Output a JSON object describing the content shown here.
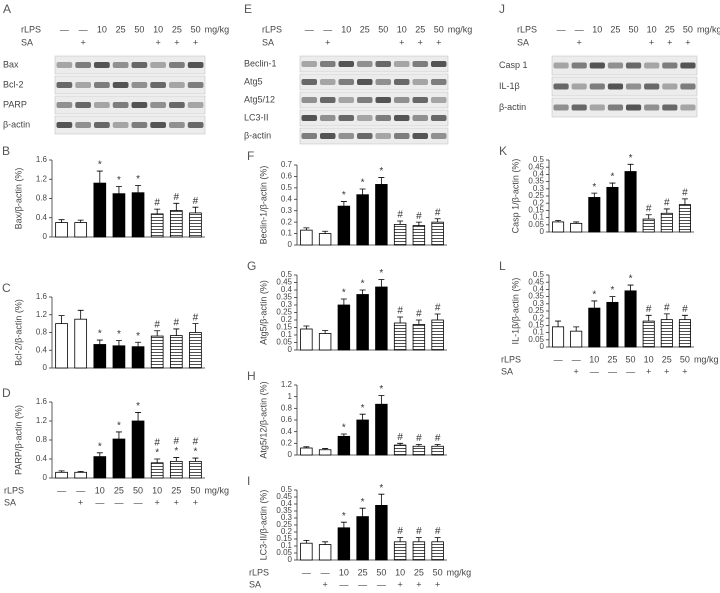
{
  "chart_data": [
    {
      "type": "bar",
      "panel": "B",
      "ylabel": "Bax/β-actin (%)",
      "ylim": [
        0,
        1.6
      ],
      "yticks": [
        0,
        0.4,
        0.8,
        1.2,
        1.6
      ],
      "values": [
        0.3,
        0.3,
        1.12,
        0.9,
        0.92,
        0.48,
        0.55,
        0.5
      ],
      "errors": [
        0.06,
        0.05,
        0.25,
        0.15,
        0.15,
        0.1,
        0.15,
        0.12
      ],
      "styles": [
        "open",
        "open",
        "solid",
        "solid",
        "solid",
        "hatched",
        "hatched",
        "hatched"
      ],
      "annotations": [
        [],
        [],
        [
          "*"
        ],
        [
          "*"
        ],
        [
          "*"
        ],
        [
          "#"
        ],
        [
          "#"
        ],
        [
          "#"
        ]
      ]
    },
    {
      "type": "bar",
      "panel": "C",
      "ylabel": "Bcl-2/β-actin (%)",
      "ylim": [
        0,
        1.6
      ],
      "yticks": [
        0,
        0.4,
        0.8,
        1.2,
        1.6
      ],
      "values": [
        1.0,
        1.1,
        0.53,
        0.5,
        0.48,
        0.72,
        0.73,
        0.8
      ],
      "errors": [
        0.18,
        0.2,
        0.1,
        0.12,
        0.1,
        0.12,
        0.15,
        0.2
      ],
      "styles": [
        "open",
        "open",
        "solid",
        "solid",
        "solid",
        "hatched",
        "hatched",
        "hatched"
      ],
      "annotations": [
        [],
        [],
        [
          "*"
        ],
        [
          "*"
        ],
        [
          "*"
        ],
        [
          "#"
        ],
        [
          "#"
        ],
        [
          "#"
        ]
      ]
    },
    {
      "type": "bar",
      "panel": "D",
      "ylabel": "PARP/β-actin (%)",
      "ylim": [
        0,
        1.6
      ],
      "yticks": [
        0,
        0.4,
        0.8,
        1.2,
        1.6
      ],
      "values": [
        0.12,
        0.12,
        0.45,
        0.82,
        1.2,
        0.32,
        0.35,
        0.35
      ],
      "errors": [
        0.03,
        0.02,
        0.08,
        0.15,
        0.18,
        0.08,
        0.08,
        0.07
      ],
      "styles": [
        "open",
        "open",
        "solid",
        "solid",
        "solid",
        "hatched",
        "hatched",
        "hatched"
      ],
      "annotations": [
        [],
        [],
        [
          "*"
        ],
        [
          "*"
        ],
        [
          "*"
        ],
        [
          "*",
          "#"
        ],
        [
          "*",
          "#"
        ],
        [
          "*",
          "#"
        ]
      ],
      "treatments": {
        "rLPS_label": "rLPS",
        "rLPS": [
          "—",
          "—",
          "10",
          "25",
          "50",
          "10",
          "25",
          "50"
        ],
        "unit": "mg/kg",
        "SA_label": "SA",
        "SA": [
          null,
          "+",
          "—",
          "—",
          "—",
          "+",
          "+",
          "+"
        ]
      }
    },
    {
      "type": "bar",
      "panel": "F",
      "ylabel": "Beclin-1/β-actin (%)",
      "ylim": [
        0,
        0.7
      ],
      "yticks": [
        0,
        0.1,
        0.2,
        0.3,
        0.4,
        0.5,
        0.6,
        0.7
      ],
      "values": [
        0.13,
        0.1,
        0.34,
        0.44,
        0.53,
        0.18,
        0.17,
        0.2
      ],
      "errors": [
        0.02,
        0.02,
        0.04,
        0.05,
        0.06,
        0.03,
        0.03,
        0.03
      ],
      "styles": [
        "open",
        "open",
        "solid",
        "solid",
        "solid",
        "hatched",
        "hatched",
        "hatched"
      ],
      "annotations": [
        [],
        [],
        [
          "*"
        ],
        [
          "*"
        ],
        [
          "*"
        ],
        [
          "#"
        ],
        [
          "#"
        ],
        [
          "#"
        ]
      ]
    },
    {
      "type": "bar",
      "panel": "G",
      "ylabel": "Atg5/β-actin (%)",
      "ylim": [
        0,
        0.5
      ],
      "yticks": [
        0,
        0.05,
        0.1,
        0.15,
        0.2,
        0.25,
        0.3,
        0.35,
        0.4,
        0.45,
        0.5
      ],
      "values": [
        0.14,
        0.11,
        0.3,
        0.37,
        0.42,
        0.18,
        0.17,
        0.2
      ],
      "errors": [
        0.02,
        0.02,
        0.04,
        0.03,
        0.05,
        0.04,
        0.03,
        0.04
      ],
      "styles": [
        "open",
        "open",
        "solid",
        "solid",
        "solid",
        "hatched",
        "hatched",
        "hatched"
      ],
      "annotations": [
        [],
        [],
        [
          "*"
        ],
        [
          "*"
        ],
        [
          "*"
        ],
        [
          "#"
        ],
        [
          "#"
        ],
        [
          "#"
        ]
      ]
    },
    {
      "type": "bar",
      "panel": "H",
      "ylabel": "Atg5/12/β-actin (%)",
      "ylim": [
        0,
        1.2
      ],
      "yticks": [
        0,
        0.2,
        0.4,
        0.6,
        0.8,
        1,
        1.2
      ],
      "values": [
        0.12,
        0.09,
        0.32,
        0.6,
        0.87,
        0.17,
        0.15,
        0.15
      ],
      "errors": [
        0.02,
        0.02,
        0.04,
        0.1,
        0.15,
        0.03,
        0.03,
        0.03
      ],
      "styles": [
        "open",
        "open",
        "solid",
        "solid",
        "solid",
        "hatched",
        "hatched",
        "hatched"
      ],
      "annotations": [
        [],
        [],
        [
          "*"
        ],
        [
          "*"
        ],
        [
          "*"
        ],
        [
          "#"
        ],
        [
          "#"
        ],
        [
          "#"
        ]
      ]
    },
    {
      "type": "bar",
      "panel": "I",
      "ylabel": "LC3-II/β-actin (%)",
      "ylim": [
        0,
        0.5
      ],
      "yticks": [
        0,
        0.05,
        0.1,
        0.15,
        0.2,
        0.25,
        0.3,
        0.35,
        0.4,
        0.45,
        0.5
      ],
      "values": [
        0.12,
        0.11,
        0.23,
        0.31,
        0.39,
        0.13,
        0.13,
        0.13
      ],
      "errors": [
        0.02,
        0.02,
        0.04,
        0.06,
        0.08,
        0.03,
        0.03,
        0.03
      ],
      "styles": [
        "open",
        "open",
        "solid",
        "solid",
        "solid",
        "hatched",
        "hatched",
        "hatched"
      ],
      "annotations": [
        [],
        [],
        [
          "*"
        ],
        [
          "*"
        ],
        [
          "*"
        ],
        [
          "#"
        ],
        [
          "#"
        ],
        [
          "#"
        ]
      ],
      "treatments": {
        "rLPS_label": "rLPS",
        "rLPS": [
          "—",
          "—",
          "10",
          "25",
          "50",
          "10",
          "25",
          "50"
        ],
        "unit": "mg/kg",
        "SA_label": "SA",
        "SA": [
          null,
          "+",
          "—",
          "—",
          "—",
          "+",
          "+",
          "+"
        ]
      }
    },
    {
      "type": "bar",
      "panel": "K",
      "ylabel": "Casp 1/β-actin (%)",
      "ylim": [
        0,
        0.5
      ],
      "yticks": [
        0,
        0.05,
        0.1,
        0.15,
        0.2,
        0.25,
        0.3,
        0.35,
        0.4,
        0.45,
        0.5
      ],
      "values": [
        0.07,
        0.06,
        0.24,
        0.31,
        0.42,
        0.09,
        0.13,
        0.19
      ],
      "errors": [
        0.01,
        0.01,
        0.03,
        0.03,
        0.05,
        0.03,
        0.03,
        0.04
      ],
      "styles": [
        "open",
        "open",
        "solid",
        "solid",
        "solid",
        "hatched",
        "hatched",
        "hatched"
      ],
      "annotations": [
        [],
        [],
        [
          "*"
        ],
        [
          "*"
        ],
        [
          "*"
        ],
        [
          "#"
        ],
        [
          "#"
        ],
        [
          "#"
        ]
      ]
    },
    {
      "type": "bar",
      "panel": "L",
      "ylabel": "IL-1β/β-actin (%)",
      "ylim": [
        0,
        0.5
      ],
      "yticks": [
        0,
        0.05,
        0.1,
        0.15,
        0.2,
        0.25,
        0.3,
        0.35,
        0.4,
        0.45,
        0.5
      ],
      "values": [
        0.14,
        0.11,
        0.27,
        0.31,
        0.39,
        0.18,
        0.19,
        0.19
      ],
      "errors": [
        0.04,
        0.03,
        0.05,
        0.04,
        0.04,
        0.04,
        0.04,
        0.03
      ],
      "styles": [
        "open",
        "open",
        "solid",
        "solid",
        "solid",
        "hatched",
        "hatched",
        "hatched"
      ],
      "annotations": [
        [],
        [],
        [
          "*"
        ],
        [
          "*"
        ],
        [
          "*"
        ],
        [
          "#"
        ],
        [
          "#"
        ],
        [
          "#"
        ]
      ],
      "treatments": {
        "rLPS_label": "rLPS",
        "rLPS": [
          "—",
          "—",
          "10",
          "25",
          "50",
          "10",
          "25",
          "50"
        ],
        "unit": "mg/kg",
        "SA_label": "SA",
        "SA": [
          null,
          "+",
          "—",
          "—",
          "—",
          "+",
          "+",
          "+"
        ]
      }
    }
  ],
  "blots": [
    {
      "panel": "A",
      "rows": [
        "Bax",
        "Bcl-2",
        "PARP",
        "β-actin"
      ],
      "treatments": {
        "rLPS_label": "rLPS",
        "rLPS": [
          "—",
          "—",
          "10",
          "25",
          "50",
          "10",
          "25",
          "50"
        ],
        "unit": "mg/kg",
        "SA_label": "SA",
        "SA": [
          null,
          "+",
          null,
          null,
          null,
          "+",
          "+",
          "+"
        ]
      }
    },
    {
      "panel": "E",
      "rows": [
        "Beclin-1",
        "Atg5",
        "Atg5/12",
        "LC3-II",
        "β-actin"
      ],
      "treatments": {
        "rLPS_label": "rLPS",
        "rLPS": [
          "—",
          "—",
          "10",
          "25",
          "50",
          "10",
          "25",
          "50"
        ],
        "unit": "mg/kg",
        "SA_label": "SA",
        "SA": [
          null,
          "+",
          null,
          null,
          null,
          "+",
          "+",
          "+"
        ]
      }
    },
    {
      "panel": "J",
      "rows": [
        "Casp 1",
        "IL-1β",
        "β-actin"
      ],
      "treatments": {
        "rLPS_label": "rLPS",
        "rLPS": [
          "—",
          "—",
          "10",
          "25",
          "50",
          "10",
          "25",
          "50"
        ],
        "unit": "mg/kg",
        "SA_label": "SA",
        "SA": [
          null,
          "+",
          null,
          null,
          null,
          "+",
          "+",
          "+"
        ]
      }
    }
  ]
}
